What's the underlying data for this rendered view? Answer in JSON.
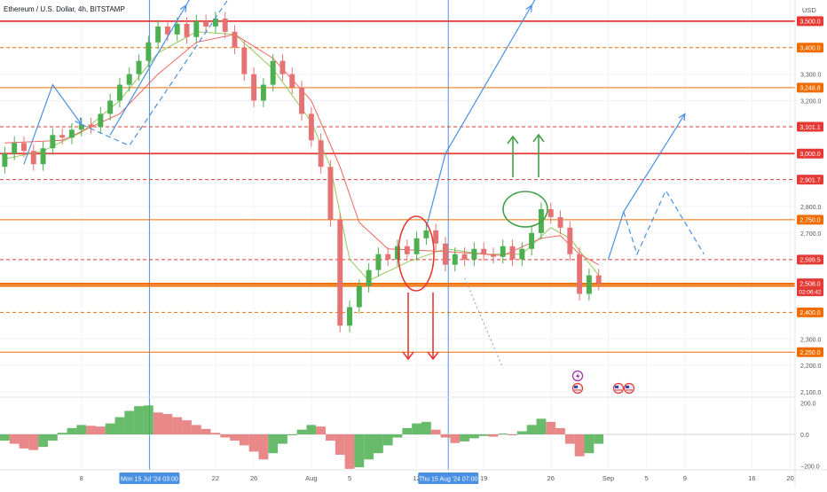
{
  "header": {
    "symbol_title": "Ethereum / U.S. Dollar, 4h, BITSTAMP",
    "currency": "USD"
  },
  "colors": {
    "bull": "#4caf50",
    "bear": "#e57373",
    "level_red": "#e53935",
    "level_orange": "#ef6c00",
    "projection": "#4a90e2",
    "ema_fast": "#8bc34a",
    "ema_slow": "#ef5350",
    "annotation_green": "#43a047",
    "annotation_red": "#e53935",
    "axis_text": "#555555"
  },
  "chart_data": [
    {
      "type": "candlestick",
      "title": "Ethereum / U.S. Dollar, 4h, BITSTAMP",
      "ylabel": "USD",
      "ylim": [
        2090,
        3580
      ],
      "x_ticks": [
        {
          "label": "8",
          "t": 8
        },
        {
          "label": "22",
          "t": 22
        },
        {
          "label": "26",
          "t": 26
        },
        {
          "label": "Aug",
          "t": 32
        },
        {
          "label": "5",
          "t": 36
        },
        {
          "label": "12",
          "t": 43
        },
        {
          "label": "19",
          "t": 50
        },
        {
          "label": "26",
          "t": 57
        },
        {
          "label": "Sep",
          "t": 63
        },
        {
          "label": "5",
          "t": 67
        },
        {
          "label": "9",
          "t": 71
        },
        {
          "label": "16",
          "t": 78
        },
        {
          "label": "20",
          "t": 82
        }
      ],
      "x_highlights": [
        {
          "label": "Mon 15 Jul '24  03:00",
          "t": 15.1
        },
        {
          "label": "Thu 15 Aug '24  07:00",
          "t": 46.3
        }
      ],
      "y_ticks": [
        3300,
        3200,
        2800,
        2700,
        2300,
        2200,
        2100
      ],
      "levels": [
        {
          "label": "3,500.0",
          "value": 3500,
          "style": "solid",
          "color": "#e53935"
        },
        {
          "label": "3,400.0",
          "value": 3400,
          "style": "dashed",
          "color": "#ef6c00"
        },
        {
          "label": "3,248.8",
          "value": 3248.8,
          "style": "solid-thin",
          "color": "#ef6c00"
        },
        {
          "label": "3,101.1",
          "value": 3101.1,
          "style": "dashed",
          "color": "#e53935"
        },
        {
          "label": "3,000.0",
          "value": 3000,
          "style": "solid",
          "color": "#e53935"
        },
        {
          "label": "2,901.7",
          "value": 2901.7,
          "style": "dashed",
          "color": "#e53935"
        },
        {
          "label": "2,750.0",
          "value": 2750,
          "style": "solid-thin",
          "color": "#ef6c00"
        },
        {
          "label": "2,599.5",
          "value": 2599.5,
          "style": "dashed",
          "color": "#e53935"
        },
        {
          "label": "2,500.0",
          "value": 2500,
          "style": "solid",
          "color": "#ef6c00"
        },
        {
          "label": "2,400.0",
          "value": 2400,
          "style": "dashed",
          "color": "#ef6c00"
        },
        {
          "label": "2,250.0",
          "value": 2250,
          "style": "solid-thin",
          "color": "#ef6c00"
        }
      ],
      "current_price": {
        "label": "2,508.0",
        "value": 2508.0,
        "countdown": "02:06:42"
      },
      "series": [
        {
          "name": "ETHUSD",
          "kind": "candles",
          "points": [
            {
              "t": 0,
              "o": 2950,
              "c": 3000
            },
            {
              "t": 1,
              "o": 3000,
              "c": 3040
            },
            {
              "t": 2,
              "o": 3040,
              "c": 3010
            },
            {
              "t": 3,
              "o": 3010,
              "c": 2960
            },
            {
              "t": 4,
              "o": 2960,
              "c": 3020
            },
            {
              "t": 5,
              "o": 3020,
              "c": 3070
            },
            {
              "t": 6,
              "o": 3070,
              "c": 3060
            },
            {
              "t": 7,
              "o": 3060,
              "c": 3090
            },
            {
              "t": 8,
              "o": 3090,
              "c": 3110
            },
            {
              "t": 9,
              "o": 3110,
              "c": 3100
            },
            {
              "t": 10,
              "o": 3100,
              "c": 3150
            },
            {
              "t": 11,
              "o": 3150,
              "c": 3200
            },
            {
              "t": 12,
              "o": 3200,
              "c": 3260
            },
            {
              "t": 13,
              "o": 3260,
              "c": 3300
            },
            {
              "t": 14,
              "o": 3300,
              "c": 3350
            },
            {
              "t": 15,
              "o": 3350,
              "c": 3420
            },
            {
              "t": 16,
              "o": 3420,
              "c": 3480
            },
            {
              "t": 17,
              "o": 3480,
              "c": 3450
            },
            {
              "t": 18,
              "o": 3450,
              "c": 3490
            },
            {
              "t": 19,
              "o": 3490,
              "c": 3440
            },
            {
              "t": 20,
              "o": 3440,
              "c": 3500
            },
            {
              "t": 21,
              "o": 3500,
              "c": 3480
            },
            {
              "t": 22,
              "o": 3480,
              "c": 3510
            },
            {
              "t": 23,
              "o": 3510,
              "c": 3460
            },
            {
              "t": 24,
              "o": 3460,
              "c": 3400
            },
            {
              "t": 25,
              "o": 3400,
              "c": 3300
            },
            {
              "t": 26,
              "o": 3300,
              "c": 3200
            },
            {
              "t": 27,
              "o": 3200,
              "c": 3260
            },
            {
              "t": 28,
              "o": 3260,
              "c": 3350
            },
            {
              "t": 29,
              "o": 3350,
              "c": 3300
            },
            {
              "t": 30,
              "o": 3300,
              "c": 3250
            },
            {
              "t": 31,
              "o": 3250,
              "c": 3150
            },
            {
              "t": 32,
              "o": 3150,
              "c": 3050
            },
            {
              "t": 33,
              "o": 3050,
              "c": 2950
            },
            {
              "t": 34,
              "o": 2950,
              "c": 2750
            },
            {
              "t": 35,
              "o": 2750,
              "c": 2350
            },
            {
              "t": 36,
              "o": 2350,
              "c": 2420
            },
            {
              "t": 37,
              "o": 2420,
              "c": 2500
            },
            {
              "t": 38,
              "o": 2500,
              "c": 2560
            },
            {
              "t": 39,
              "o": 2560,
              "c": 2620
            },
            {
              "t": 40,
              "o": 2620,
              "c": 2600
            },
            {
              "t": 41,
              "o": 2600,
              "c": 2650
            },
            {
              "t": 42,
              "o": 2650,
              "c": 2620
            },
            {
              "t": 43,
              "o": 2620,
              "c": 2680
            },
            {
              "t": 44,
              "o": 2680,
              "c": 2710
            },
            {
              "t": 45,
              "o": 2710,
              "c": 2660
            },
            {
              "t": 46,
              "o": 2660,
              "c": 2580
            },
            {
              "t": 47,
              "o": 2580,
              "c": 2620
            },
            {
              "t": 48,
              "o": 2620,
              "c": 2600
            },
            {
              "t": 49,
              "o": 2600,
              "c": 2640
            },
            {
              "t": 50,
              "o": 2640,
              "c": 2620
            },
            {
              "t": 51,
              "o": 2620,
              "c": 2610
            },
            {
              "t": 52,
              "o": 2610,
              "c": 2650
            },
            {
              "t": 53,
              "o": 2650,
              "c": 2600
            },
            {
              "t": 54,
              "o": 2600,
              "c": 2640
            },
            {
              "t": 55,
              "o": 2640,
              "c": 2700
            },
            {
              "t": 56,
              "o": 2700,
              "c": 2790
            },
            {
              "t": 57,
              "o": 2790,
              "c": 2760
            },
            {
              "t": 58,
              "o": 2760,
              "c": 2720
            },
            {
              "t": 59,
              "o": 2720,
              "c": 2620
            },
            {
              "t": 60,
              "o": 2620,
              "c": 2470
            },
            {
              "t": 61,
              "o": 2470,
              "c": 2540
            },
            {
              "t": 62,
              "o": 2540,
              "c": 2508
            }
          ]
        },
        {
          "name": "EMA fast",
          "kind": "line",
          "points": [
            [
              0,
              2980
            ],
            [
              4,
              3010
            ],
            [
              8,
              3080
            ],
            [
              12,
              3200
            ],
            [
              16,
              3380
            ],
            [
              20,
              3460
            ],
            [
              24,
              3450
            ],
            [
              28,
              3320
            ],
            [
              32,
              3120
            ],
            [
              34,
              2950
            ],
            [
              36,
              2600
            ],
            [
              38,
              2520
            ],
            [
              42,
              2590
            ],
            [
              46,
              2640
            ],
            [
              50,
              2620
            ],
            [
              54,
              2620
            ],
            [
              57,
              2720
            ],
            [
              59,
              2680
            ],
            [
              62,
              2540
            ]
          ]
        },
        {
          "name": "EMA slow",
          "kind": "line",
          "points": [
            [
              0,
              3040
            ],
            [
              6,
              3050
            ],
            [
              12,
              3150
            ],
            [
              16,
              3300
            ],
            [
              20,
              3420
            ],
            [
              24,
              3450
            ],
            [
              28,
              3360
            ],
            [
              32,
              3200
            ],
            [
              35,
              2950
            ],
            [
              37,
              2740
            ],
            [
              40,
              2640
            ],
            [
              46,
              2630
            ],
            [
              52,
              2615
            ],
            [
              56,
              2680
            ],
            [
              58,
              2690
            ],
            [
              60,
              2620
            ],
            [
              62,
              2580
            ]
          ]
        }
      ],
      "projections": [
        {
          "name": "path-left-up",
          "style": "solid",
          "points": [
            [
              2,
              2960
            ],
            [
              5,
              3260
            ],
            [
              8,
              3110
            ]
          ]
        },
        {
          "name": "path-left-dash",
          "style": "dashed",
          "points": [
            [
              8,
              3110
            ],
            [
              13,
              3030
            ],
            [
              24,
              3620
            ]
          ]
        },
        {
          "name": "path-rally",
          "style": "solid",
          "points": [
            [
              11,
              3070
            ],
            [
              22,
              3750
            ]
          ]
        },
        {
          "name": "path-mid-up",
          "style": "solid",
          "points": [
            [
              44,
              2720
            ],
            [
              46,
              3000
            ],
            [
              60,
              3870
            ]
          ]
        },
        {
          "name": "path-mid-dots",
          "style": "dotted",
          "points": [
            [
              48,
              2530
            ],
            [
              52,
              2190
            ]
          ]
        },
        {
          "name": "path-right-up",
          "style": "solid",
          "points": [
            [
              63,
              2600
            ],
            [
              64.6,
              2780
            ],
            [
              71,
              3150
            ]
          ]
        },
        {
          "name": "path-right-dash",
          "style": "dashed",
          "points": [
            [
              64.6,
              2780
            ],
            [
              66,
              2620
            ],
            [
              69,
              2860
            ],
            [
              73,
              2620
            ]
          ]
        }
      ],
      "x_range": [
        -0.5,
        82.5
      ]
    },
    {
      "type": "bar",
      "title": "",
      "ylim": [
        -215,
        215
      ],
      "y_ticks": [
        200,
        0,
        -200
      ],
      "y_tick_labels": [
        "200.0",
        "0.0",
        "−200.0"
      ],
      "series": [
        {
          "name": "",
          "values": [
            -40,
            -60,
            -90,
            -100,
            -80,
            -40,
            10,
            40,
            60,
            55,
            50,
            70,
            110,
            150,
            180,
            185,
            140,
            130,
            110,
            90,
            60,
            35,
            10,
            -20,
            -40,
            -70,
            -110,
            -160,
            -120,
            -60,
            0,
            30,
            60,
            50,
            -40,
            -130,
            -220,
            -210,
            -160,
            -120,
            -70,
            -20,
            40,
            70,
            80,
            30,
            -20,
            -55,
            -45,
            -25,
            -10,
            -15,
            5,
            -5,
            20,
            60,
            100,
            80,
            40,
            -60,
            -140,
            -120,
            -60
          ]
        }
      ]
    }
  ],
  "annotations": {
    "circle_red": "red ellipse around consolidation",
    "circle_green": "green ellipse around local top",
    "arrows_green_up": 2,
    "arrows_red_down": 2
  },
  "event_icons": {
    "earnings": "lightning-icon",
    "flags": [
      "us-flag-icon",
      "us-flag-icon",
      "us-flag-icon"
    ]
  }
}
